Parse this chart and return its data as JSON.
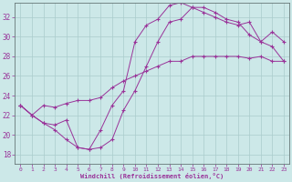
{
  "xlabel": "Windchill (Refroidissement éolien,°C)",
  "bg_color": "#cce8e8",
  "line_color": "#993399",
  "xlim": [
    -0.5,
    23.5
  ],
  "ylim": [
    17,
    33.5
  ],
  "xticks": [
    0,
    1,
    2,
    3,
    4,
    5,
    6,
    7,
    8,
    9,
    10,
    11,
    12,
    13,
    14,
    15,
    16,
    17,
    18,
    19,
    20,
    21,
    22,
    23
  ],
  "yticks": [
    18,
    20,
    22,
    24,
    26,
    28,
    30,
    32
  ],
  "grid_color": "#aacccc",
  "series1_x": [
    0,
    1,
    2,
    3,
    4,
    5,
    6,
    7,
    8,
    9,
    10,
    11,
    12,
    13,
    14,
    15,
    16,
    17,
    18,
    19,
    20,
    21,
    22,
    23
  ],
  "series1_y": [
    23.0,
    22.0,
    21.2,
    20.5,
    19.5,
    18.7,
    18.5,
    18.7,
    19.5,
    22.5,
    24.5,
    27.0,
    29.5,
    31.5,
    31.8,
    33.0,
    33.0,
    32.5,
    31.8,
    31.5,
    30.2,
    29.5,
    30.5,
    29.5
  ],
  "series2_x": [
    0,
    1,
    2,
    3,
    4,
    5,
    6,
    7,
    8,
    9,
    10,
    11,
    12,
    13,
    14,
    15,
    16,
    17,
    18,
    19,
    20,
    21,
    22,
    23
  ],
  "series2_y": [
    23.0,
    22.0,
    23.0,
    22.8,
    23.2,
    23.5,
    23.5,
    23.8,
    24.8,
    25.5,
    26.0,
    26.5,
    27.0,
    27.5,
    27.5,
    28.0,
    28.0,
    28.0,
    28.0,
    28.0,
    27.8,
    28.0,
    27.5,
    27.5
  ],
  "series3_x": [
    0,
    1,
    2,
    3,
    4,
    5,
    6,
    7,
    8,
    9,
    10,
    11,
    12,
    13,
    14,
    15,
    16,
    17,
    18,
    19,
    20,
    21,
    22,
    23
  ],
  "series3_y": [
    23.0,
    22.0,
    21.2,
    21.0,
    21.5,
    18.7,
    18.5,
    20.5,
    23.0,
    24.5,
    29.5,
    31.2,
    31.8,
    33.2,
    33.5,
    33.0,
    32.5,
    32.0,
    31.5,
    31.2,
    31.5,
    29.5,
    29.0,
    27.5
  ]
}
